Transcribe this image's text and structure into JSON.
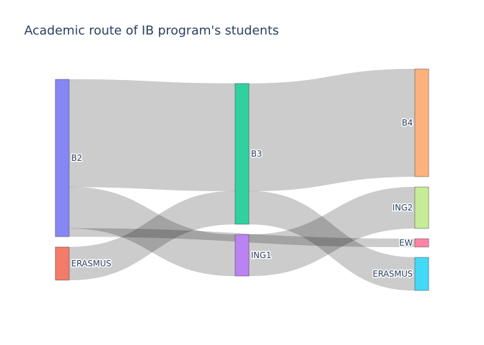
{
  "chart_data": {
    "type": "sankey",
    "title": "Academic route of IB program's students",
    "nodes": [
      {
        "id": "B2",
        "label": "B2",
        "color": "#8686f5",
        "column": 0
      },
      {
        "id": "ERASMUS_0",
        "label": "ERASMUS",
        "color": "#f47b69",
        "column": 0
      },
      {
        "id": "B3",
        "label": "B3",
        "color": "#2fd1a1",
        "column": 1
      },
      {
        "id": "ING1",
        "label": "ING1",
        "color": "#bb82f3",
        "column": 1
      },
      {
        "id": "B4",
        "label": "B4",
        "color": "#fdb27e",
        "column": 2
      },
      {
        "id": "ING2",
        "label": "ING2",
        "color": "#c6ec97",
        "column": 2
      },
      {
        "id": "EW",
        "label": "EW",
        "color": "#ff84a5",
        "column": 2
      },
      {
        "id": "ERASMUS_2",
        "label": "ERASMUS",
        "color": "#43d9f6",
        "column": 2
      }
    ],
    "links": [
      {
        "source": "B2",
        "target": "B3",
        "value": 26
      },
      {
        "source": "B2",
        "target": "EW",
        "value": 2
      },
      {
        "source": "B2",
        "target": "ING1",
        "value": 10
      },
      {
        "source": "ERASMUS_0",
        "target": "B3",
        "value": 8
      },
      {
        "source": "B3",
        "target": "B4",
        "value": 26
      },
      {
        "source": "B3",
        "target": "ERASMUS_2",
        "value": 8
      },
      {
        "source": "ING1",
        "target": "ING2",
        "value": 10
      }
    ]
  }
}
